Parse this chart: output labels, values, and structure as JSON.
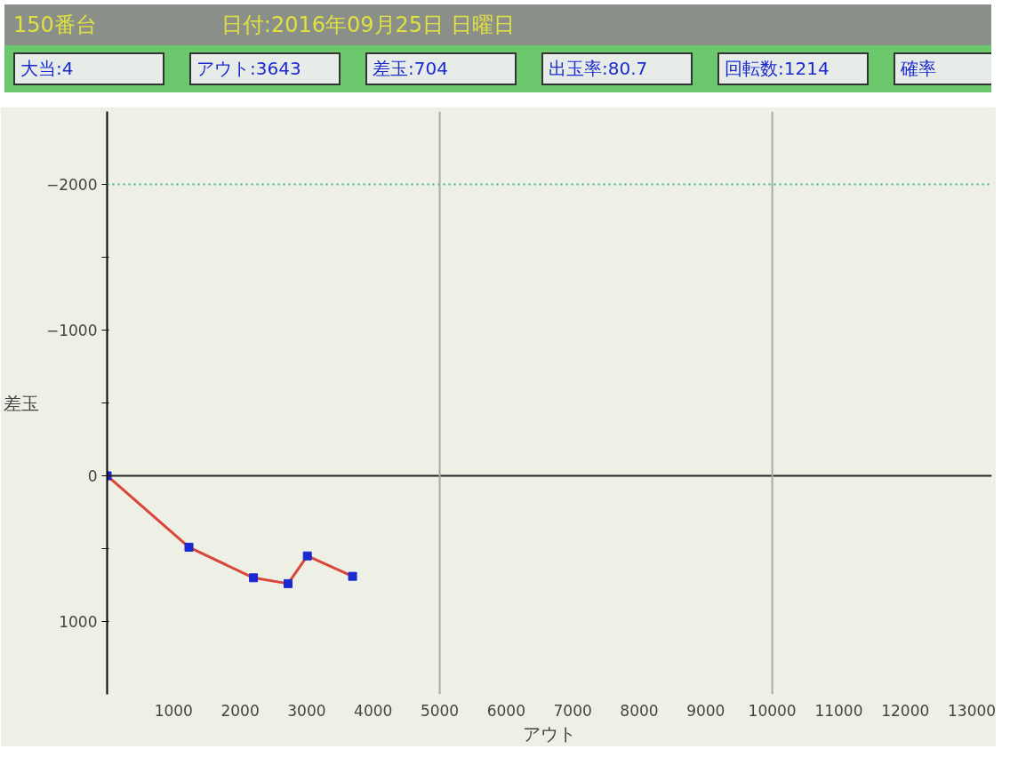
{
  "chart_data": {
    "type": "line",
    "title": "150番台",
    "annotations": [
      "日付:2016年09月25日 日曜日",
      "大当:4",
      "アウト:3643",
      "差玉:704",
      "出玉率:80.7",
      "回転数:1214",
      "確率"
    ],
    "xlabel": "アウト",
    "ylabel": "差玉",
    "x": [
      0,
      1230,
      2200,
      2720,
      3010,
      3690
    ],
    "series": [
      {
        "color": "#d9463a",
        "values": [
          0,
          490,
          700,
          740,
          550,
          690
        ]
      }
    ],
    "marker": "square",
    "xlim": [
      0,
      13300
    ],
    "xticks": [
      1000,
      2000,
      3000,
      4000,
      5000,
      6000,
      7000,
      8000,
      9000,
      10000,
      11000,
      12000,
      13000
    ],
    "ylim": [
      1500,
      -2500
    ],
    "yticks": [
      -2000,
      {
        "value": -1500,
        "label": null
      },
      -1000,
      {
        "value": -500,
        "label": null
      },
      0,
      {
        "value": 500,
        "label": null
      },
      1000
    ],
    "grid": false,
    "ref_lines": [
      {
        "axis": "y",
        "value": 0,
        "color": "#222222",
        "line_style": "solid"
      },
      {
        "axis": "y",
        "value": -2000,
        "color": "#3cb371",
        "line_style": "dotted"
      },
      {
        "axis": "x",
        "value": 5000,
        "color": "#aaaaaa",
        "line_style": "solid"
      },
      {
        "axis": "x",
        "value": 10000,
        "color": "#aaaaaa",
        "line_style": "solid"
      }
    ]
  }
}
